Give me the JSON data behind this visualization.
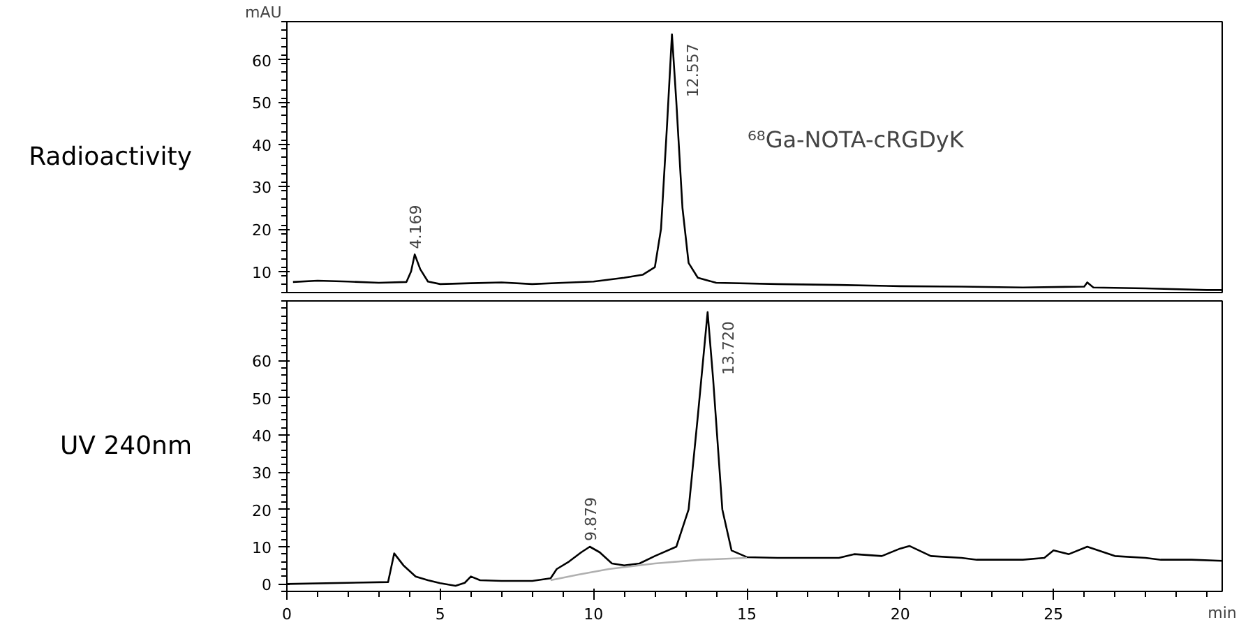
{
  "chart_data": [
    {
      "type": "line",
      "title": "Radioactivity",
      "ylabel": "mAU",
      "xlim": [
        0,
        30.5
      ],
      "ylim": [
        5,
        69
      ],
      "yticks": [
        10,
        20,
        30,
        40,
        50,
        60
      ],
      "xticks": [
        0,
        5,
        10,
        15,
        20,
        25
      ],
      "tick_labels": "y",
      "grid": false,
      "annotations": [
        {
          "text": "4.169",
          "x": 4.169,
          "y": 14
        },
        {
          "text": "12.557",
          "x": 12.557,
          "y": 66
        },
        "⁶⁸Ga-NOTA-cRGDyK"
      ],
      "series": [
        {
          "color": "#000000",
          "x": [
            0.2,
            1,
            2,
            3,
            3.9,
            4.05,
            4.169,
            4.35,
            4.6,
            5,
            6,
            7,
            8,
            9,
            10,
            11,
            11.6,
            12,
            12.2,
            12.4,
            12.557,
            12.7,
            12.9,
            13.1,
            13.4,
            14,
            16,
            18,
            20,
            22,
            24,
            26,
            26.1,
            26.3,
            28,
            30,
            30.5
          ],
          "values": [
            7.5,
            7.8,
            7.6,
            7.3,
            7.5,
            10,
            14,
            10.5,
            7.6,
            7,
            7.2,
            7.4,
            7,
            7.3,
            7.6,
            8.5,
            9.2,
            11,
            20,
            45,
            66,
            50,
            25,
            12,
            8.5,
            7.3,
            7,
            6.8,
            6.5,
            6.4,
            6.2,
            6.4,
            7.4,
            6.2,
            6,
            5.6,
            5.6
          ]
        }
      ]
    },
    {
      "type": "line",
      "title": "UV 240nm",
      "xlabel": "min",
      "xlim": [
        0,
        30.5
      ],
      "ylim": [
        -2,
        76
      ],
      "yticks": [
        0,
        10,
        20,
        30,
        40,
        50,
        60
      ],
      "xticks": [
        0,
        5,
        10,
        15,
        20,
        25
      ],
      "grid": false,
      "annotations": [
        {
          "text": "9.879",
          "x": 9.879,
          "y": 10
        },
        {
          "text": "13.720",
          "x": 13.72,
          "y": 73
        }
      ],
      "series": [
        {
          "color": "#000000",
          "x": [
            0,
            3.3,
            3.5,
            3.8,
            4.2,
            4.6,
            5,
            5.5,
            5.8,
            6,
            6.3,
            7,
            8,
            8.6,
            8.8,
            9.2,
            9.6,
            9.879,
            10.2,
            10.6,
            11,
            11.5,
            12,
            12.7,
            13.1,
            13.4,
            13.72,
            13.9,
            14.2,
            14.5,
            15,
            16,
            18,
            18.5,
            19.4,
            20,
            20.3,
            21,
            22,
            22.5,
            24,
            24.7,
            25,
            25.5,
            26.1,
            27,
            28,
            28.5,
            29.5,
            30.5
          ],
          "values": [
            0,
            0.5,
            8.2,
            5,
            2,
            1,
            0.2,
            -0.5,
            0.3,
            2,
            1,
            0.8,
            0.8,
            1.5,
            4,
            6,
            8.5,
            10,
            8.5,
            5.5,
            5,
            5.5,
            7.5,
            10,
            20,
            45,
            73,
            55,
            20,
            9,
            7.2,
            7,
            7,
            8,
            7.5,
            9.5,
            10.2,
            7.5,
            7,
            6.5,
            6.5,
            7,
            9,
            8,
            10,
            7.5,
            7,
            6.5,
            6.5,
            6.2
          ]
        },
        {
          "color": "#b0b0b0",
          "x": [
            8.6,
            9.5,
            10.5,
            12,
            13.5,
            15
          ],
          "values": [
            1,
            2.5,
            4,
            5.5,
            6.5,
            7
          ]
        }
      ]
    }
  ]
}
